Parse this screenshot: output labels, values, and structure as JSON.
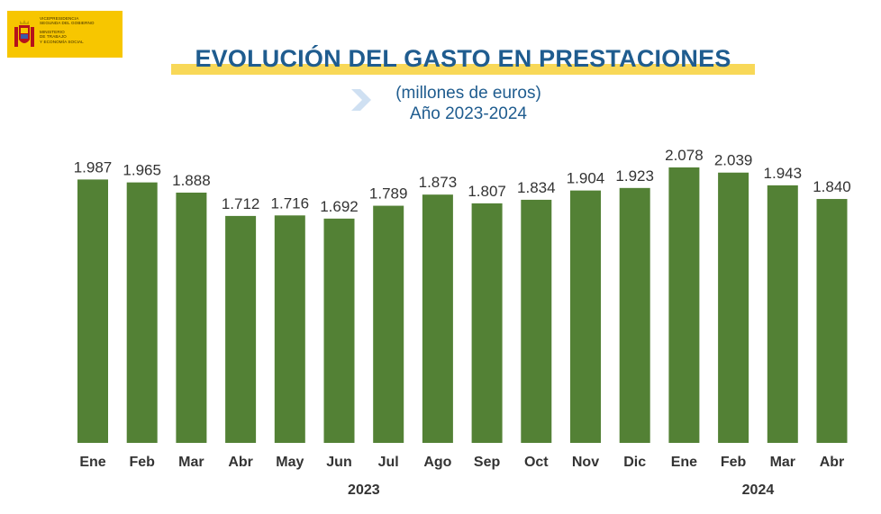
{
  "logo": {
    "lines": [
      "VICEPRESIDENCIA",
      "SEGUNDA DEL GOBIERNO",
      "MINISTERIO",
      "DE TRABAJO",
      "Y ECONOMÍA SOCIAL"
    ],
    "color": "#f7c600"
  },
  "header": {
    "title": "EVOLUCIÓN DEL GASTO EN PRESTACIONES",
    "subtitle_line1": "(millones  de euros)",
    "subtitle_line2": "Año 2023-2024"
  },
  "chart_data": {
    "type": "bar",
    "categories": [
      "Ene",
      "Feb",
      "Mar",
      "Abr",
      "May",
      "Jun",
      "Jul",
      "Ago",
      "Sep",
      "Oct",
      "Nov",
      "Dic",
      "Ene",
      "Feb",
      "Mar",
      "Abr"
    ],
    "values": [
      1987,
      1965,
      1888,
      1712,
      1716,
      1692,
      1789,
      1873,
      1807,
      1834,
      1904,
      1923,
      2078,
      2039,
      1943,
      1840
    ],
    "value_labels": [
      "1.987",
      "1.965",
      "1.888",
      "1.712",
      "1.716",
      "1.692",
      "1.789",
      "1.873",
      "1.807",
      "1.834",
      "1.904",
      "1.923",
      "2.078",
      "2.039",
      "1.943",
      "1.840"
    ],
    "year_groups": [
      {
        "label": "2023",
        "from": 0,
        "to": 11
      },
      {
        "label": "2024",
        "from": 12,
        "to": 15
      }
    ],
    "title": "",
    "xlabel": "",
    "ylabel": "",
    "ylim": [
      0,
      2078
    ],
    "grid": false,
    "bar_color": "#538135"
  }
}
